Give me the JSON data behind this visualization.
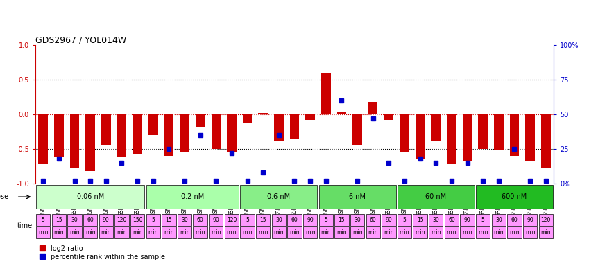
{
  "title": "GDS2967 / YOL014W",
  "samples": [
    "GSM227656",
    "GSM227657",
    "GSM227658",
    "GSM227659",
    "GSM227660",
    "GSM227661",
    "GSM227662",
    "GSM227663",
    "GSM227664",
    "GSM227665",
    "GSM227666",
    "GSM227667",
    "GSM227668",
    "GSM227669",
    "GSM227670",
    "GSM227671",
    "GSM227672",
    "GSM227673",
    "GSM227674",
    "GSM227675",
    "GSM227676",
    "GSM227677",
    "GSM227678",
    "GSM227679",
    "GSM227680",
    "GSM227681",
    "GSM227682",
    "GSM227683",
    "GSM227684",
    "GSM227685",
    "GSM227686",
    "GSM227687",
    "GSM227688"
  ],
  "log2_ratio": [
    -0.72,
    -0.62,
    -0.78,
    -0.82,
    -0.45,
    -0.62,
    -0.58,
    -0.3,
    -0.6,
    -0.55,
    -0.18,
    -0.5,
    -0.55,
    -0.12,
    0.02,
    -0.38,
    -0.35,
    -0.08,
    0.6,
    0.03,
    -0.45,
    0.18,
    -0.08,
    -0.55,
    -0.65,
    -0.38,
    -0.72,
    -0.68,
    -0.5,
    -0.52,
    -0.6,
    -0.68,
    -0.78
  ],
  "percentile": [
    0.02,
    0.18,
    0.02,
    0.02,
    0.02,
    0.15,
    0.02,
    0.02,
    0.25,
    0.02,
    0.35,
    0.02,
    0.22,
    0.02,
    0.08,
    0.35,
    0.02,
    0.02,
    0.02,
    0.6,
    0.02,
    0.47,
    0.15,
    0.02,
    0.18,
    0.15,
    0.02,
    0.15,
    0.02,
    0.02,
    0.25,
    0.02,
    0.02
  ],
  "doses": [
    {
      "label": "0.06 nM",
      "start": 0,
      "end": 7,
      "color": "#ccffcc"
    },
    {
      "label": "0.2 nM",
      "start": 7,
      "end": 13,
      "color": "#aaffaa"
    },
    {
      "label": "0.6 nM",
      "start": 13,
      "end": 18,
      "color": "#88ee88"
    },
    {
      "label": "6 nM",
      "start": 18,
      "end": 23,
      "color": "#66dd66"
    },
    {
      "label": "60 nM",
      "start": 23,
      "end": 28,
      "color": "#44cc44"
    },
    {
      "label": "600 nM",
      "start": 28,
      "end": 33,
      "color": "#22bb22"
    }
  ],
  "times": [
    "5\nmin",
    "15\nmin",
    "30\nmin",
    "60\nmin",
    "90\nmin",
    "120\nmin",
    "150\nmin",
    "5\nmin",
    "15\nmin",
    "30\nmin",
    "60\nmin",
    "90\nmin",
    "120\nmin",
    "5\nmin",
    "15\nmin",
    "30\nmin",
    "60\nmin",
    "90\nmin",
    "5\nmin",
    "15\nmin",
    "30\nmin",
    "60\nmin",
    "90\nmin",
    "5\nmin",
    "15\nmin",
    "30\nmin",
    "60\nmin",
    "90\nmin",
    "5\nmin",
    "30\nmin",
    "60\nmin",
    "90\nmin",
    "120\nmin"
  ],
  "dose_colors": [
    "#ccffcc",
    "#aaffaa",
    "#88ee88",
    "#66dd66",
    "#44cc44",
    "#22bb22"
  ],
  "time_color": "#ff99ff",
  "bar_color": "#cc0000",
  "dot_color": "#0000cc",
  "left_axis_color": "#cc0000",
  "right_axis_color": "#0000cc",
  "ylim": [
    -1.0,
    1.0
  ],
  "yticks_left": [
    -1.0,
    -0.5,
    0.0,
    0.5,
    1.0
  ],
  "yticks_right": [
    0,
    25,
    50,
    75,
    100
  ],
  "ytick_labels_right": [
    "0%",
    "25",
    "50",
    "75",
    "100%"
  ]
}
